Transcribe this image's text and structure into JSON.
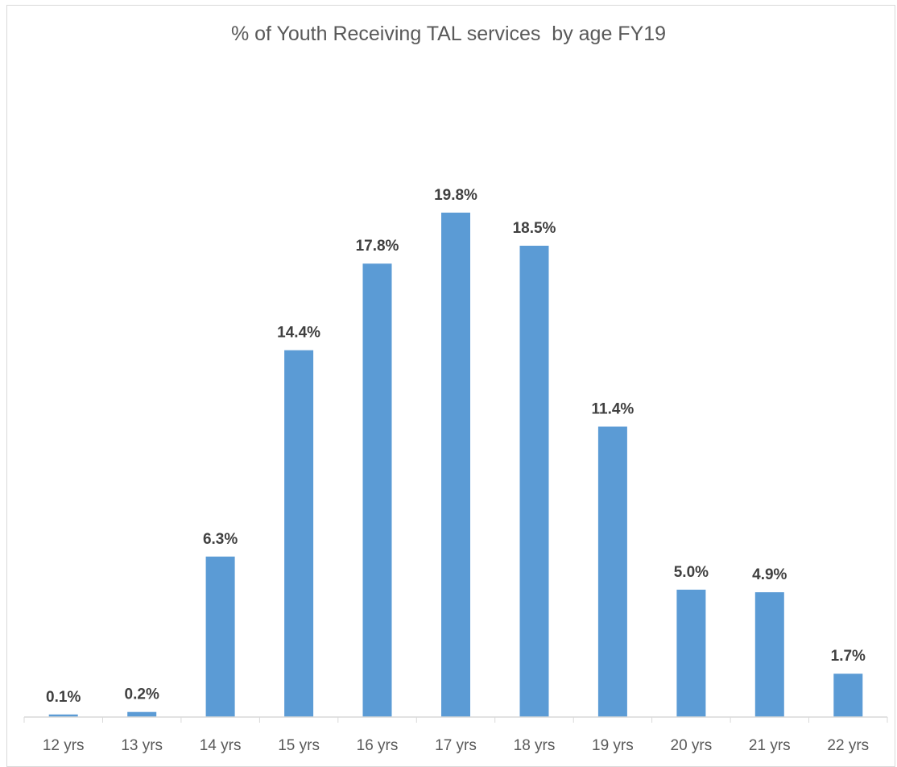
{
  "chart_data": {
    "type": "bar",
    "title": "% of Youth Receiving TAL services  by age FY19",
    "xlabel": "",
    "ylabel": "",
    "categories": [
      "12 yrs",
      "13 yrs",
      "14 yrs",
      "15 yrs",
      "16 yrs",
      "17 yrs",
      "18 yrs",
      "19 yrs",
      "20 yrs",
      "21 yrs",
      "22 yrs"
    ],
    "values": [
      0.1,
      0.2,
      6.3,
      14.4,
      17.8,
      19.8,
      18.5,
      11.4,
      5.0,
      4.9,
      1.7
    ],
    "data_labels": [
      "0.1%",
      "0.2%",
      "6.3%",
      "14.4%",
      "17.8%",
      "19.8%",
      "18.5%",
      "11.4%",
      "5.0%",
      "4.9%",
      "1.7%"
    ],
    "ylim": [
      0,
      20
    ],
    "grid": false,
    "legend": "none",
    "colors": {
      "bar": "#5b9bd5",
      "axis": "#d9d9d9",
      "title": "#595959",
      "data_label": "#404040",
      "tick_label": "#595959"
    }
  }
}
